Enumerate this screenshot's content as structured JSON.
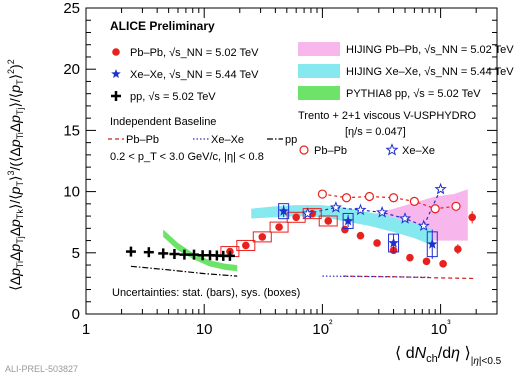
{
  "figure_id": "ALI-PREL-503827",
  "chart_data": {
    "type": "scatter",
    "title": "ALICE Preliminary",
    "xlabel": "⟨ dN_ch/dη ⟩ |η|<0.5",
    "ylabel": "⟨Δp_Ti Δp_Tj Δp_Tk⟩/⟨p_T⟩³ / (⟨Δp_Ti Δp_Tj⟩/⟨p_T⟩²)²",
    "x_scale": "log",
    "xlim": [
      1,
      3000
    ],
    "ylim": [
      0,
      25
    ],
    "x_ticks": [
      1,
      10,
      100,
      1000
    ],
    "x_tick_labels": [
      "1",
      "10",
      "10²",
      "10³"
    ],
    "y_ticks": [
      0,
      5,
      10,
      15,
      20,
      25
    ],
    "y_tick_labels": [
      "0",
      "5",
      "10",
      "15",
      "20",
      "25"
    ],
    "legend": [
      {
        "name": "Pb–Pb, √s_NN = 5.02 TeV",
        "marker": "filled-circle",
        "color": "#e8201e"
      },
      {
        "name": "Xe–Xe, √s_NN = 5.44 TeV",
        "marker": "star",
        "color": "#1f2fd0"
      },
      {
        "name": "pp, √s = 5.02 TeV",
        "marker": "cross",
        "color": "#000000"
      },
      {
        "name": "HIJING Pb–Pb, √s_NN = 5.02 TeV",
        "marker": "band",
        "color": "#f7b7ec"
      },
      {
        "name": "HIJING Xe–Xe, √s_NN = 5.44 TeV",
        "marker": "band",
        "color": "#86e9f0"
      },
      {
        "name": "PYTHIA8 pp, √s = 5.02 TeV",
        "marker": "band",
        "color": "#6ee36a"
      }
    ],
    "baseline_title": "Independent Baseline",
    "baseline_legend": [
      {
        "name": "Pb–Pb",
        "style": "dashed",
        "color": "#cc2222"
      },
      {
        "name": "Xe–Xe",
        "style": "dotted",
        "color": "#3030c0"
      },
      {
        "name": "pp",
        "style": "dashdot",
        "color": "#000000"
      }
    ],
    "cuts": "0.2 < p_T < 3.0 GeV/c, |η| < 0.8",
    "model_title": "Trento + 2+1 viscous V-USPHYDRO",
    "model_param": "[η/s = 0.047]",
    "model_legend": [
      {
        "name": "Pb–Pb",
        "marker": "open-circle",
        "color": "#e8201e"
      },
      {
        "name": "Xe–Xe",
        "marker": "open-star",
        "color": "#1f2fd0"
      }
    ],
    "footnote": "Uncertainties: stat. (bars), sys. (boxes)",
    "series": [
      {
        "name": "Pb–Pb",
        "color": "#e8201e",
        "x": [
          16.5,
          22.5,
          31,
          43,
          60,
          82,
          112,
          155,
          210,
          290,
          400,
          550,
          760,
          1050,
          1400,
          1850
        ],
        "y": [
          5.1,
          5.6,
          6.3,
          7.1,
          7.9,
          8.2,
          7.6,
          6.9,
          6.4,
          5.8,
          5.2,
          4.6,
          4.3,
          4.1,
          5.3,
          7.9
        ],
        "yerr": [
          0.2,
          0.2,
          0.2,
          0.2,
          0.3,
          0.3,
          0.3,
          0.3,
          0.3,
          0.3,
          0.3,
          0.3,
          0.3,
          0.3,
          0.4,
          0.5
        ]
      },
      {
        "name": "Xe–Xe",
        "color": "#1f2fd0",
        "x": [
          47,
          165,
          400,
          850
        ],
        "y": [
          8.4,
          7.6,
          5.8,
          5.7
        ],
        "yerr": [
          0.5,
          0.5,
          0.7,
          1.2
        ]
      },
      {
        "name": "pp",
        "color": "#000000",
        "x": [
          2.4,
          3.4,
          4.5,
          5.6,
          6.8,
          8.2,
          9.7,
          11.2,
          12.8,
          14.5,
          16.5
        ],
        "y": [
          5.1,
          5.05,
          4.95,
          4.9,
          4.85,
          4.85,
          4.8,
          4.8,
          4.78,
          4.75,
          4.75
        ],
        "yerr": [
          0.2,
          0.2,
          0.2,
          0.2,
          0.2,
          0.2,
          0.2,
          0.2,
          0.2,
          0.2,
          0.2
        ]
      },
      {
        "name": "Trento Pb–Pb",
        "color": "#e8201e",
        "x": [
          100,
          160,
          250,
          400,
          600,
          900,
          1350
        ],
        "y": [
          9.8,
          9.5,
          9.6,
          9.5,
          9.2,
          8.6,
          8.8
        ]
      },
      {
        "name": "Trento Xe–Xe",
        "color": "#1f2fd0",
        "x": [
          75,
          130,
          210,
          320,
          500,
          720,
          1000
        ],
        "y": [
          8.2,
          8.7,
          8.5,
          8.3,
          7.8,
          7.2,
          10.2
        ]
      },
      {
        "name": "Baseline Pb–Pb",
        "color": "#cc2222",
        "x": [
          150,
          400,
          1000,
          2000
        ],
        "y": [
          3.1,
          3.05,
          2.95,
          2.9
        ]
      },
      {
        "name": "Baseline Xe–Xe",
        "color": "#3030c0",
        "x": [
          100,
          300,
          800
        ],
        "y": [
          3.1,
          3.05,
          3.0
        ]
      },
      {
        "name": "Baseline pp",
        "color": "#000000",
        "x": [
          2.4,
          5,
          10,
          19
        ],
        "y": [
          3.9,
          3.6,
          3.3,
          3.1
        ]
      }
    ],
    "bands": [
      {
        "name": "HIJING Pb–Pb",
        "color": "#f7b7ec",
        "x": [
          280,
          400,
          600,
          900,
          1300,
          1700
        ],
        "low": [
          7.4,
          6.8,
          6.2,
          6.0,
          6.0,
          6.0
        ],
        "high": [
          8.2,
          8.6,
          9.1,
          9.6,
          9.8,
          10.2
        ]
      },
      {
        "name": "HIJING Xe–Xe",
        "color": "#86e9f0",
        "x": [
          25,
          40,
          60,
          100,
          150,
          250,
          400,
          600,
          850
        ],
        "low": [
          7.8,
          7.9,
          8.0,
          7.9,
          7.6,
          7.2,
          6.7,
          6.2,
          5.6
        ],
        "high": [
          8.6,
          8.8,
          8.9,
          8.9,
          8.7,
          8.3,
          7.9,
          7.4,
          6.9
        ]
      },
      {
        "name": "PYTHIA8 pp",
        "color": "#6ee36a",
        "x": [
          4.5,
          6,
          8,
          11,
          15,
          19
        ],
        "low": [
          6.3,
          5.2,
          4.5,
          3.9,
          3.6,
          3.5
        ],
        "high": [
          6.9,
          5.8,
          5.0,
          4.4,
          4.1,
          4.0
        ]
      }
    ]
  }
}
